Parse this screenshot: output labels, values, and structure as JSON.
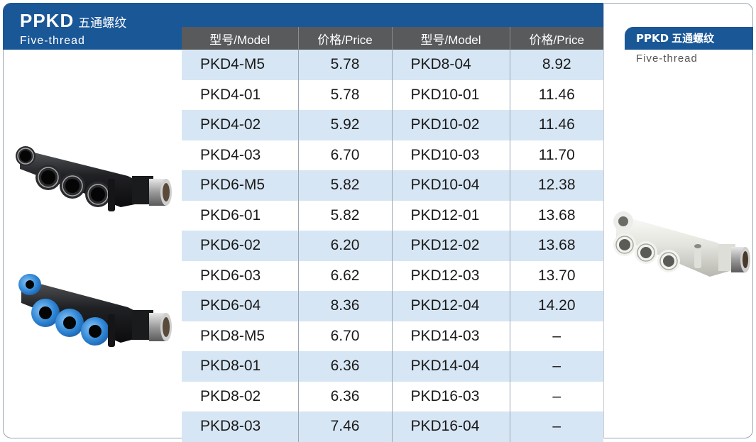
{
  "header": {
    "code": "PPKD",
    "title_cn": "五通螺纹",
    "subtitle": "Five-thread"
  },
  "side_label": {
    "code": "PPKD",
    "title_cn": "五通螺纹",
    "subtitle": "Five-thread"
  },
  "table": {
    "columns": [
      "型号/Model",
      "价格/Price",
      "型号/Model",
      "价格/Price"
    ],
    "rows": [
      [
        "PKD4-M5",
        "5.78",
        "PKD8-04",
        "8.92"
      ],
      [
        "PKD4-01",
        "5.78",
        "PKD10-01",
        "11.46"
      ],
      [
        "PKD4-02",
        "5.92",
        "PKD10-02",
        "11.46"
      ],
      [
        "PKD4-03",
        "6.70",
        "PKD10-03",
        "11.70"
      ],
      [
        "PKD6-M5",
        "5.82",
        "PKD10-04",
        "12.38"
      ],
      [
        "PKD6-01",
        "5.82",
        "PKD12-01",
        "13.68"
      ],
      [
        "PKD6-02",
        "6.20",
        "PKD12-02",
        "13.68"
      ],
      [
        "PKD6-03",
        "6.62",
        "PKD12-03",
        "13.70"
      ],
      [
        "PKD6-04",
        "8.36",
        "PKD12-04",
        "14.20"
      ],
      [
        "PKD8-M5",
        "6.70",
        "PKD14-03",
        "–"
      ],
      [
        "PKD8-01",
        "6.36",
        "PKD14-04",
        "–"
      ],
      [
        "PKD8-02",
        "6.36",
        "PKD16-03",
        "–"
      ],
      [
        "PKD8-03",
        "7.46",
        "PKD16-04",
        "–"
      ]
    ]
  },
  "colors": {
    "header_blue": "#1a5797",
    "row_stripe": "#d7e6f4",
    "column_header": "#585a5c",
    "fitting_black": "#1f2022",
    "fitting_blue": "#2f86d6",
    "fitting_white": "#e8e8e2"
  }
}
